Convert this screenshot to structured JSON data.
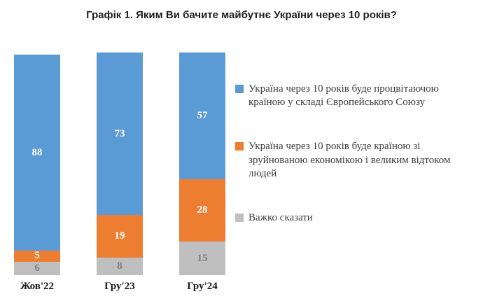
{
  "chart_data": {
    "type": "bar",
    "subtype": "stacked-vertical",
    "title": "Графік 1. Яким Ви бачите майбутнє України через 10 років?",
    "categories": [
      "Жов'22",
      "Гру'23",
      "Гру'24"
    ],
    "series": [
      {
        "name": "Україна через 10 років буде процвітаючою країною у складі Європейського Союзу",
        "color": "#5b9bd5",
        "label_color": "#ffffff",
        "values": [
          88,
          73,
          57
        ]
      },
      {
        "name": "Україна через 10 років буде країною зі зруйнованою економікою і великим відтоком людей",
        "color": "#ed7d31",
        "label_color": "#ffffff",
        "values": [
          5,
          19,
          28
        ]
      },
      {
        "name": "Важко сказати",
        "color": "#bfbfbf",
        "label_color": "#7f7f7f",
        "values": [
          6,
          8,
          15
        ]
      }
    ],
    "stack_order_visual": "first series on top, last series at bottom",
    "ylim": [
      0,
      100
    ],
    "grid": false,
    "legend_position": "right",
    "data_labels": true
  }
}
